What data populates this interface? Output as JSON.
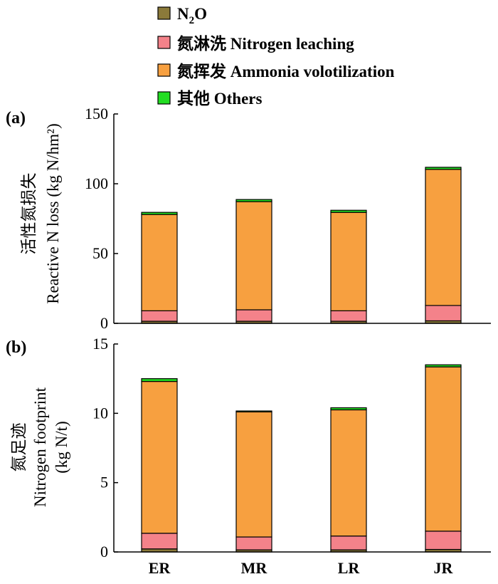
{
  "legend": [
    {
      "key": "n2o",
      "prefix": "N",
      "sub": "2",
      "suffix": "O",
      "color": "#8b7a3a"
    },
    {
      "key": "leaching",
      "label": "氮淋洗 Nitrogen leaching",
      "color": "#f4828a"
    },
    {
      "key": "volatilization",
      "label": "氮挥发 Ammonia volotilization",
      "color": "#f7a040"
    },
    {
      "key": "others",
      "label": "其他 Others",
      "color": "#22dd22"
    }
  ],
  "chart_data": [
    {
      "type": "bar",
      "stacked": true,
      "panel_label": "(a)",
      "ylabel_line1": "活性氮损失",
      "ylabel_line2": "Reactive N loss (kg N/hm²)",
      "ylim": [
        0,
        150
      ],
      "yticks": [
        "0",
        "50",
        "100",
        "150"
      ],
      "categories": [
        "ER",
        "MR",
        "LR",
        "JR"
      ],
      "series": [
        {
          "name": "N2O",
          "values": [
            1.5,
            1.5,
            1.5,
            1.8
          ]
        },
        {
          "name": "氮淋洗 Nitrogen leaching",
          "values": [
            7.5,
            8.2,
            7.5,
            11.0
          ]
        },
        {
          "name": "氮挥发 Ammonia volotilization",
          "values": [
            69.0,
            77.5,
            70.5,
            97.5
          ]
        },
        {
          "name": "其他 Others",
          "values": [
            1.5,
            1.5,
            1.5,
            1.5
          ]
        }
      ]
    },
    {
      "type": "bar",
      "stacked": true,
      "panel_label": "(b)",
      "ylabel_line1": "氮足迹",
      "ylabel_line2": "Nitrogen footprint",
      "ylabel_line3": "(kg N/t)",
      "ylim": [
        0,
        15
      ],
      "yticks": [
        "0",
        "5",
        "10",
        "15"
      ],
      "categories": [
        "ER",
        "MR",
        "LR",
        "JR"
      ],
      "series": [
        {
          "name": "N2O",
          "values": [
            0.22,
            0.15,
            0.15,
            0.18
          ]
        },
        {
          "name": "氮淋洗 Nitrogen leaching",
          "values": [
            1.13,
            0.93,
            1.0,
            1.32
          ]
        },
        {
          "name": "氮挥发 Ammonia volotilization",
          "values": [
            10.95,
            9.02,
            9.1,
            11.85
          ]
        },
        {
          "name": "其他 Others",
          "values": [
            0.2,
            0.07,
            0.15,
            0.15
          ]
        }
      ]
    }
  ]
}
